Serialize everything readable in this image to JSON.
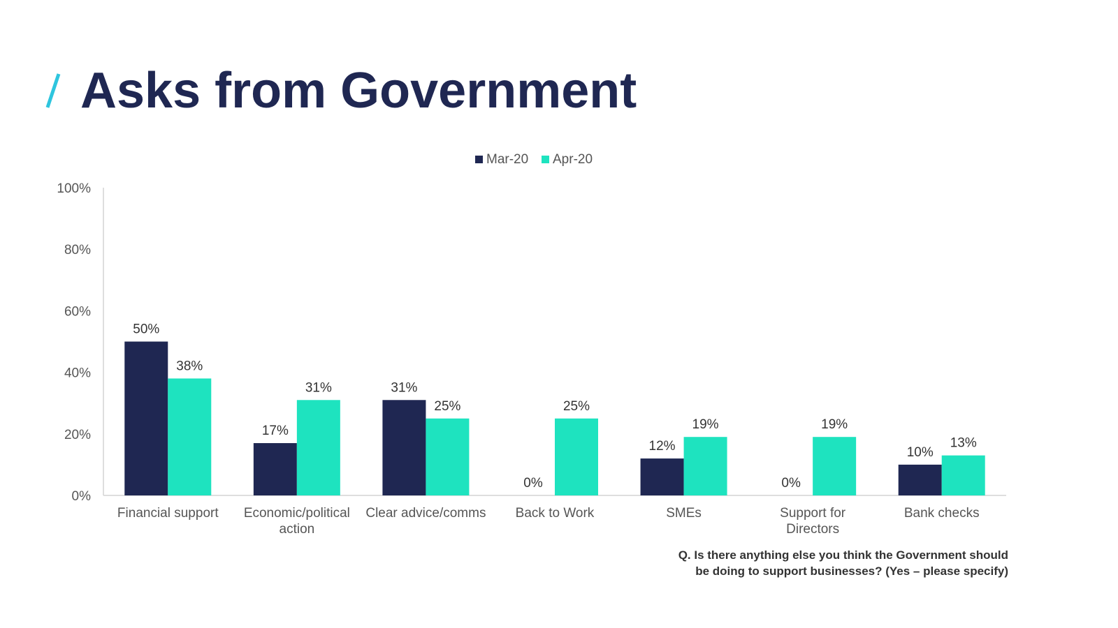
{
  "title": "Asks from Government",
  "colors": {
    "title": "#1f2752",
    "accent": "#2ec5de",
    "mar": "#1f2752",
    "apr": "#1ee3bf",
    "axis_text": "#555555",
    "axis_line": "#d4d4d4"
  },
  "chart_data": {
    "type": "bar",
    "categories": [
      [
        "Financial support"
      ],
      [
        "Economic/political",
        "action"
      ],
      [
        "Clear advice/comms"
      ],
      [
        "Back to Work"
      ],
      [
        "SMEs"
      ],
      [
        "Support for",
        "Directors"
      ],
      [
        "Bank checks"
      ]
    ],
    "series": [
      {
        "name": "Mar-20",
        "values": [
          50,
          17,
          31,
          0,
          12,
          0,
          10
        ],
        "labels": [
          "50%",
          "17%",
          "31%",
          "0%",
          "12%",
          "0%",
          "10%"
        ]
      },
      {
        "name": "Apr-20",
        "values": [
          38,
          31,
          25,
          25,
          19,
          19,
          13
        ],
        "labels": [
          "38%",
          "31%",
          "25%",
          "25%",
          "19%",
          "19%",
          "13%"
        ]
      }
    ],
    "ylim": [
      0,
      100
    ],
    "yticks": [
      "0%",
      "20%",
      "40%",
      "60%",
      "80%",
      "100%"
    ],
    "legend_position": "top-center",
    "grid": false
  },
  "footnote": {
    "line1": "Q. Is there anything else you think the Government should",
    "line2": "be doing to support businesses? (Yes – please specify)"
  }
}
